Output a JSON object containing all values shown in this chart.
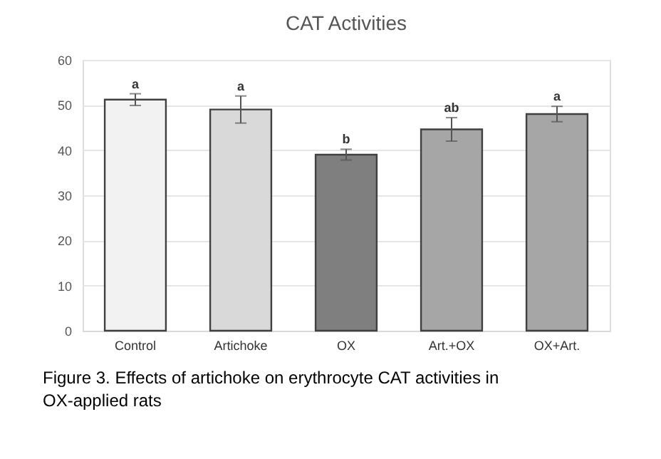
{
  "chart_data": {
    "type": "bar",
    "title": "CAT Activities",
    "categories": [
      "Control",
      "Artichoke",
      "OX",
      "Art.+OX",
      "OX+Art."
    ],
    "values": [
      51.2,
      49,
      39,
      44.6,
      48
    ],
    "colors": [
      "#f2f2f2",
      "#d9d9d9",
      "#7f7f7f",
      "#a6a6a6",
      "#a6a6a6"
    ],
    "errors": [
      1.3,
      3,
      1.2,
      2.6,
      1.7
    ],
    "ylim": [
      0,
      60
    ],
    "yticks": [
      0,
      10,
      20,
      30,
      40,
      50,
      60
    ],
    "grid": "y",
    "annotations": [
      {
        "text": "a",
        "x": "Control",
        "y": 52.5
      },
      {
        "text": "a",
        "x": "Artichoke",
        "y": 52
      },
      {
        "text": "b",
        "x": "OX",
        "y": 40.2
      },
      {
        "text": "ab",
        "x": "Art.+OX",
        "y": 47.2
      },
      {
        "text": "a",
        "x": "OX+Art.",
        "y": 49.7
      },
      "Figure 3. Effects of artichoke on erythrocyte CAT activities in OX-applied rats"
    ]
  }
}
